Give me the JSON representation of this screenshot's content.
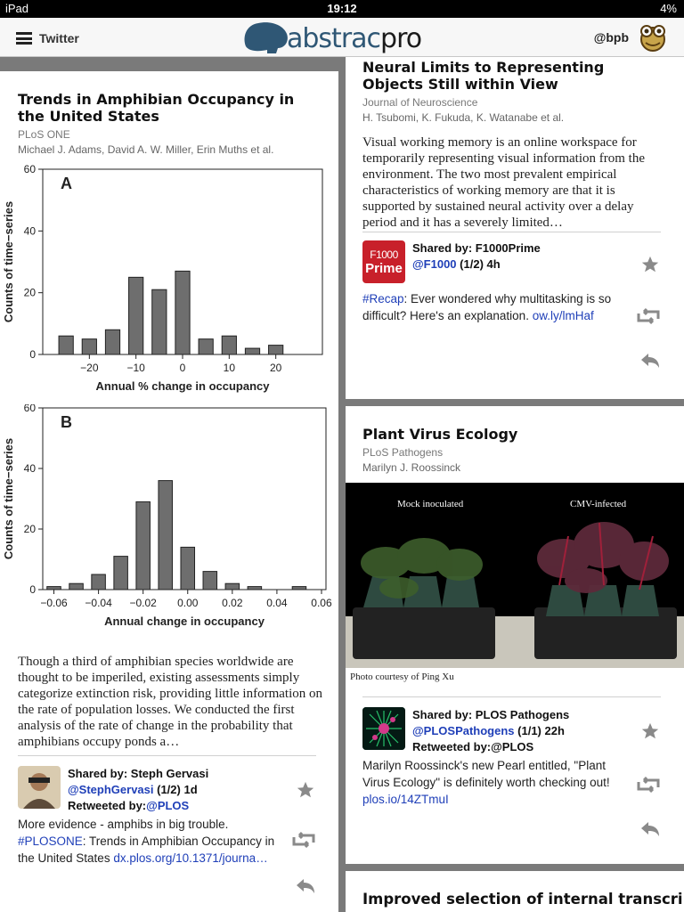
{
  "status": {
    "device": "iPad",
    "time": "19:12",
    "battery": "4%"
  },
  "nav": {
    "menu_label": "Twitter",
    "logo_a": "abstrac",
    "logo_b": "pro",
    "user": "@bpb"
  },
  "cards": {
    "amph": {
      "title": "Trends in Amphibian Occupancy in the United States",
      "journal": "PLoS ONE",
      "authors": "Michael J. Adams, David A. W. Miller, Erin Muths et al.",
      "abstract": "Though a third of amphibian species worldwide are thought to be imperiled, existing assessments simply categorize extinction risk, providing little information on the rate of population losses. We conducted the first analysis of the rate of change in the probability that amphibians occupy ponds a…",
      "shared_by": "Shared by: Steph Gervasi",
      "handle": "@StephGervasi",
      "count": "(1/2) 1d",
      "retweeted_label": "Retweeted by:",
      "retweeted_handle": "@PLOS",
      "tweet_plain": "More evidence - amphibs in big trouble.",
      "tweet_tag": "#PLOSONE",
      "tweet_rest": ": Trends in Amphibian Occupancy in the United States ",
      "tweet_link": "dx.plos.org/10.1371/journa…"
    },
    "neural": {
      "title": "Neural Limits to Representing Objects Still within View",
      "journal": "Journal of Neuroscience",
      "authors": "H. Tsubomi, K. Fukuda, K. Watanabe et al.",
      "abstract": "Visual working memory is an online workspace for temporarily representing visual information from the environment. The two most prevalent empirical characteristics of working memory are that it is supported by sustained neural activity over a delay period and it has a severely limited…",
      "logo_top": "F1000",
      "logo_bottom": "Prime",
      "shared_by": "Shared by: F1000Prime",
      "handle": "@F1000",
      "count": "(1/2) 4h",
      "tweet_tag": "#Recap",
      "tweet_rest": ": Ever wondered why multitasking is so difficult? Here's an explanation. ",
      "tweet_link": "ow.ly/lmHaf"
    },
    "plant": {
      "title": "Plant Virus Ecology",
      "journal": "PLoS Pathogens",
      "authors": "Marilyn J. Roossinck",
      "photo_left": "Mock inoculated",
      "photo_right": "CMV-infected",
      "caption": "Photo courtesy of Ping Xu",
      "shared_by": "Shared by: PLOS Pathogens",
      "handle": "@PLOSPathogens",
      "count": "(1/1) 22h",
      "retweeted": "Retweeted by:@PLOS",
      "tweet_plain": "Marilyn Roossinck's new Pearl entitled, \"Plant Virus Ecology\" is definitely worth checking out! ",
      "tweet_link": "plos.io/14ZTmuI"
    },
    "next": {
      "title": "Improved selection of internal transcribed"
    }
  },
  "chart_data": [
    {
      "type": "bar",
      "panel_label": "A",
      "x": [
        -25,
        -20,
        -15,
        -10,
        -5,
        0,
        5,
        10,
        15,
        20,
        25
      ],
      "values": [
        6,
        5,
        8,
        25,
        21,
        27,
        5,
        6,
        2,
        3,
        0
      ],
      "xticks": [
        "−20",
        "−10",
        "0",
        "10",
        "20"
      ],
      "yticks": [
        "0",
        "20",
        "40",
        "60"
      ],
      "xlabel": "Annual % change in occupancy",
      "ylabel": "Counts of time−series",
      "ylim": [
        0,
        60
      ]
    },
    {
      "type": "bar",
      "panel_label": "B",
      "x": [
        -0.06,
        -0.05,
        -0.04,
        -0.03,
        -0.02,
        -0.01,
        0.0,
        0.01,
        0.02,
        0.03,
        0.04,
        0.05
      ],
      "values": [
        1,
        2,
        5,
        11,
        29,
        36,
        14,
        6,
        2,
        1,
        0,
        1
      ],
      "xticks": [
        "−0.06",
        "−0.04",
        "−0.02",
        "0.00",
        "0.02",
        "0.04",
        "0.06"
      ],
      "yticks": [
        "0",
        "20",
        "40",
        "60"
      ],
      "xlabel": "Annual change in occupancy",
      "ylabel": "Counts of time−series",
      "ylim": [
        0,
        60
      ]
    }
  ]
}
